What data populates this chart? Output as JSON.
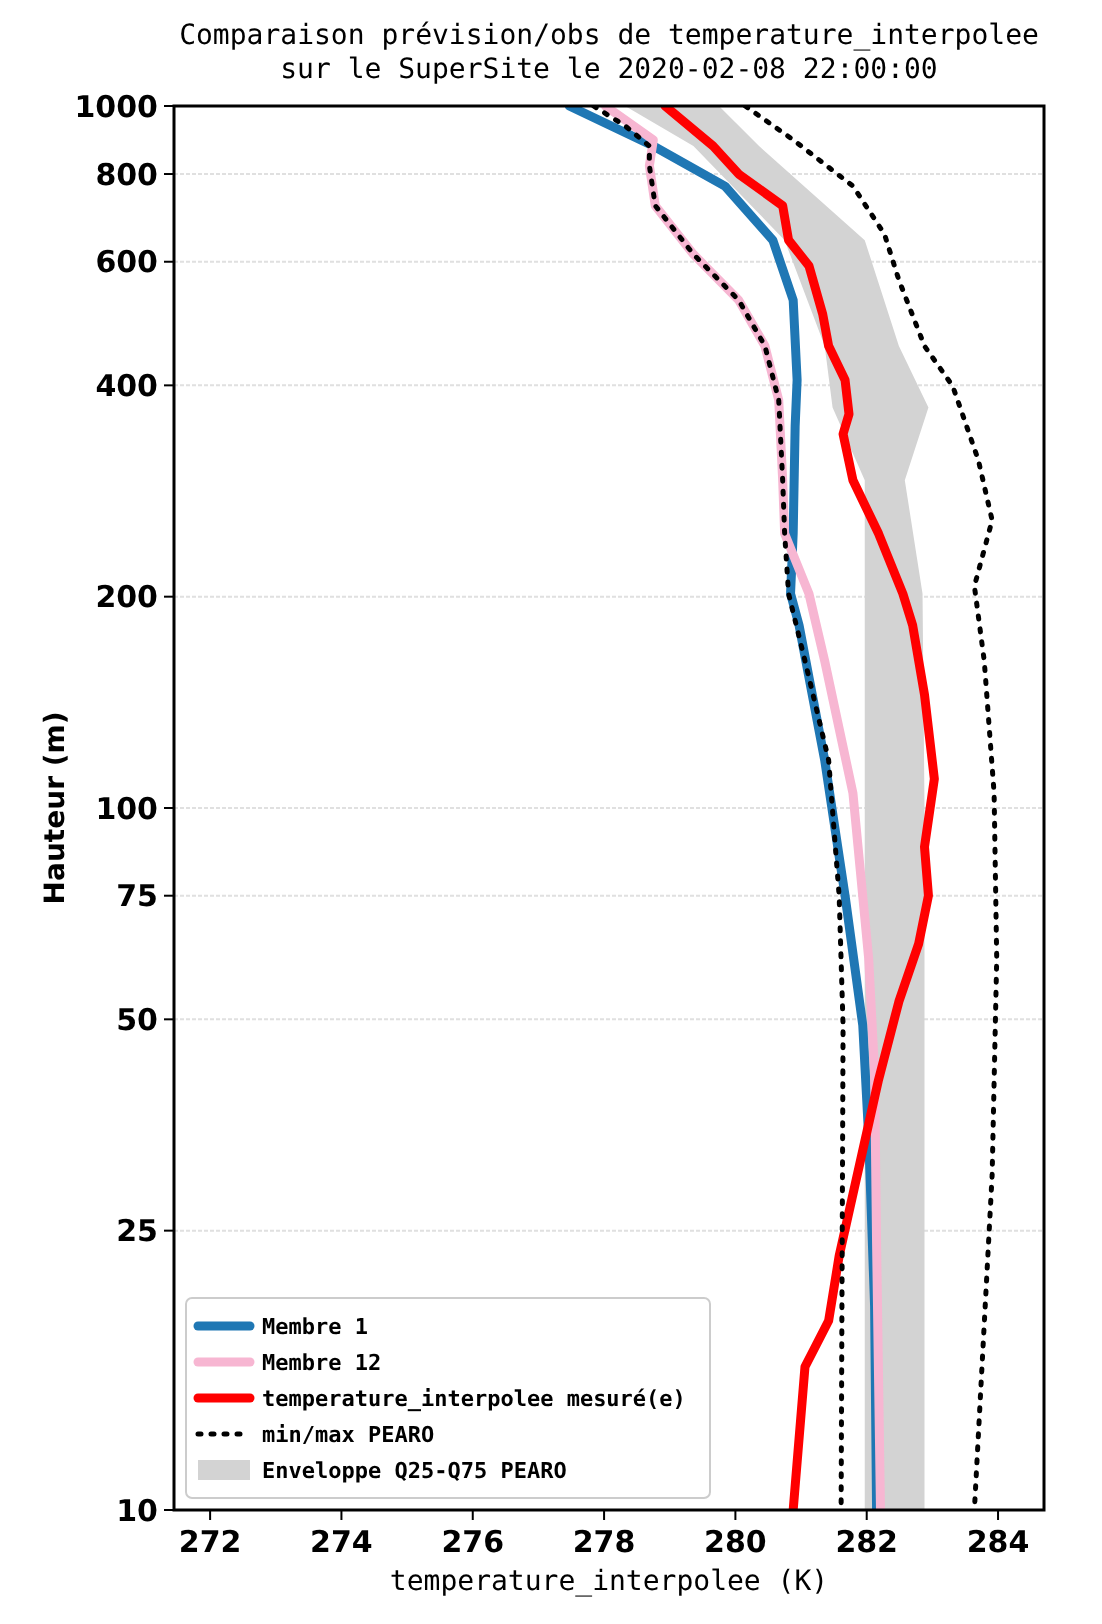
{
  "chart_data": {
    "type": "line",
    "orientation": "horizontal",
    "title": "Comparaison prévision/obs de temperature_interpolee\nsur le SuperSite le 2020-02-08 22:00:00",
    "xlabel": "temperature_interpolee (K)",
    "ylabel": "Hauteur (m)",
    "xlim": [
      271.45,
      284.7
    ],
    "xticks": [
      272,
      274,
      276,
      278,
      280,
      282,
      284
    ],
    "ylim": [
      10,
      1000
    ],
    "yticks": [
      10,
      25,
      50,
      75,
      100,
      200,
      400,
      600,
      800,
      1000
    ],
    "log": "y",
    "grid": "y",
    "legend": "bottom left",
    "marker": "none",
    "series": [
      {
        "name": "Membre 1",
        "color": "#1f77b4",
        "line_style": "solid",
        "values": [
          277.47,
          278.75,
          279.84,
          280.57,
          280.88,
          280.94,
          280.91,
          280.88,
          280.84,
          280.97,
          281.36,
          281.67,
          281.94,
          282.03,
          282.12,
          282.15
        ],
        "x": [
          1000,
          877,
          769,
          644,
          529,
          407,
          350,
          246,
          202,
          182,
          117,
          75,
          49,
          34,
          19.5,
          10
        ]
      },
      {
        "name": "Membre 12",
        "color": "#f7b6d2",
        "line_style": "solid",
        "values": [
          278.02,
          278.75,
          278.69,
          278.78,
          279.36,
          280.05,
          280.45,
          280.66,
          280.72,
          280.75,
          281.12,
          281.36,
          281.79,
          282.03,
          282.12,
          282.15,
          282.21
        ],
        "x": [
          1000,
          895,
          822,
          721,
          615,
          529,
          455,
          381,
          293,
          246,
          202,
          162,
          105,
          61,
          42,
          24,
          10
        ]
      },
      {
        "name": "temperature_interpolee mesuré(e)",
        "color": "#ff0000",
        "line_style": "solid",
        "values": [
          278.93,
          279.66,
          280.05,
          280.72,
          280.81,
          281.12,
          281.33,
          281.42,
          281.67,
          281.73,
          281.64,
          281.79,
          282.18,
          282.55,
          282.7,
          282.88,
          283.03,
          282.88,
          282.94,
          282.79,
          282.49,
          282.18,
          281.58,
          281.42,
          281.06,
          280.88
        ],
        "x": [
          1000,
          877,
          800,
          721,
          644,
          592,
          505,
          455,
          407,
          364,
          341,
          293,
          246,
          202,
          182,
          145,
          110,
          88,
          75,
          64,
          53,
          41,
          23,
          18.6,
          16,
          10
        ]
      },
      {
        "name": "min/max PEARO",
        "color": "#000000",
        "line_style": "dotted",
        "values": [
          277.84,
          278.32,
          278.69,
          278.69,
          278.78,
          279.36,
          280.05,
          280.45,
          280.66,
          280.72,
          280.75,
          280.81,
          281.06,
          281.42,
          281.58,
          281.64,
          281.61
        ],
        "x": [
          1000,
          937,
          877,
          822,
          721,
          615,
          529,
          455,
          381,
          293,
          246,
          202,
          162,
          117,
          75,
          49,
          10
        ]
      },
      {
        "color": "#000000",
        "line_style": "dotted",
        "values": [
          280.15,
          280.88,
          281.79,
          282.27,
          282.49,
          282.88,
          283.31,
          283.7,
          283.91,
          283.64,
          283.79,
          283.94,
          283.98,
          283.91,
          283.64
        ],
        "x": [
          1000,
          895,
          769,
          657,
          565,
          455,
          399,
          313,
          257,
          207,
          162,
          105,
          61,
          30,
          10
        ]
      },
      {
        "name": "Enveloppe Q25-Q75 PEARO",
        "type": "area",
        "color": "#d3d3d3",
        "x": [
          1000,
          877,
          644,
          455,
          372,
          293,
          202,
          100,
          50,
          10
        ],
        "values": [
          null,
          null,
          null,
          null,
          null,
          null,
          null,
          null,
          null,
          null
        ],
        "lower": [
          278.32,
          279.36,
          280.75,
          281.36,
          281.48,
          281.97,
          281.97,
          281.97,
          281.97,
          281.97
        ],
        "upper": [
          279.75,
          280.36,
          281.97,
          282.49,
          282.94,
          282.58,
          282.85,
          282.88,
          282.88,
          282.88
        ]
      }
    ]
  }
}
